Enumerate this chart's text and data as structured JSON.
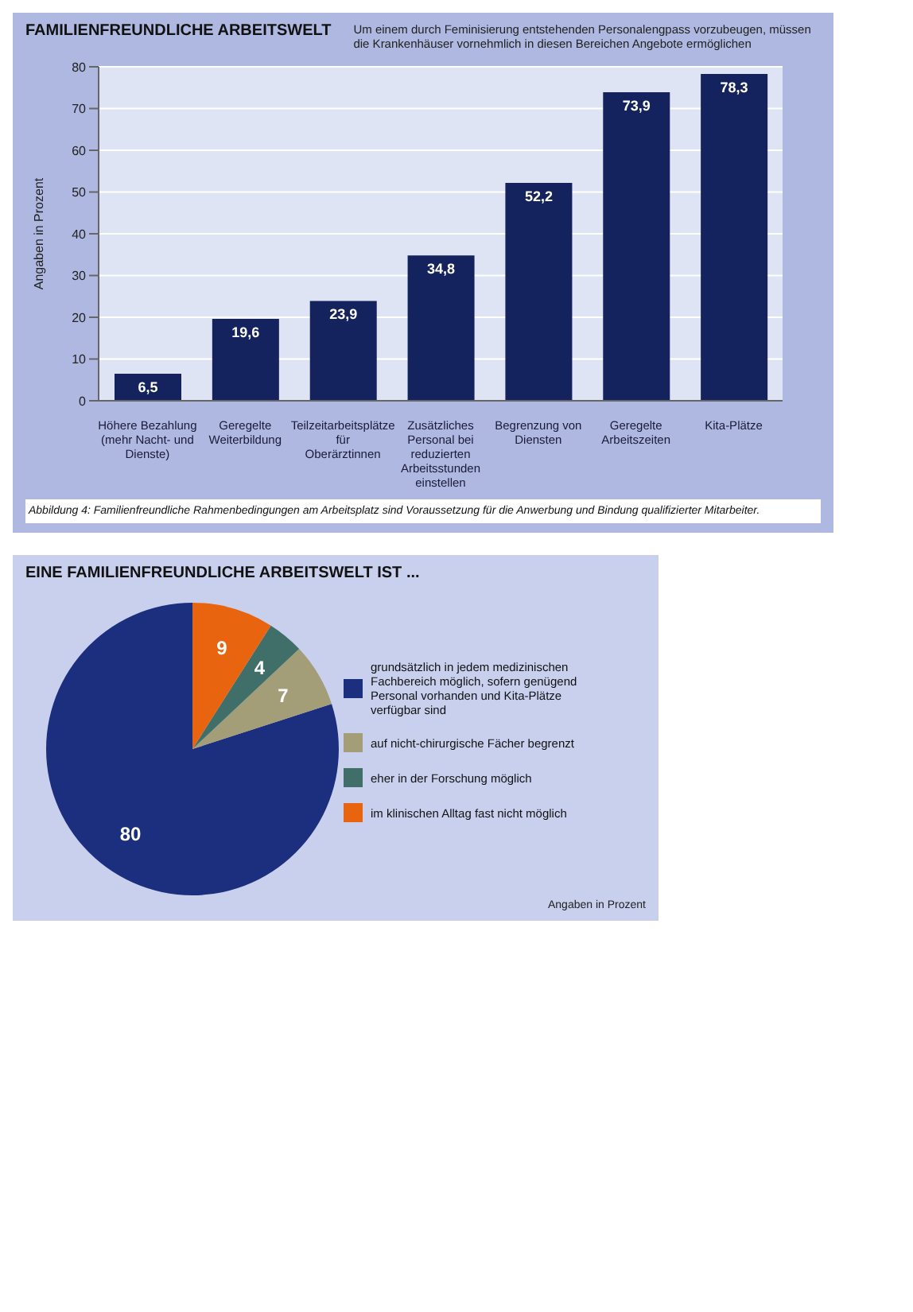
{
  "chart_data": [
    {
      "type": "bar",
      "title": "FAMILIENFREUNDLICHE ARBEITSWELT",
      "subtitle": "Um einem durch Feminisierung entstehenden Personalengpass vorzubeugen, müssen die Krankenhäuser vornehmlich in diesen Bereichen Angebote ermöglichen",
      "ylabel": "Angaben in Prozent",
      "categories": [
        "Höhere Bezahlung (mehr Nacht- und Dienste)",
        "Geregelte Weiterbildung",
        "Teilzeitarbeitsplätze für Oberärztinnen",
        "Zusätzliches Personal bei reduzierten Arbeitsstunden einstellen",
        "Begrenzung von Diensten",
        "Geregelte Arbeitszeiten",
        "Kita-Plätze"
      ],
      "values": [
        6.5,
        19.6,
        23.9,
        34.8,
        52.2,
        73.9,
        78.3
      ],
      "value_labels": [
        "6,5",
        "19,6",
        "23,9",
        "34,8",
        "52,2",
        "73,9",
        "78,3"
      ],
      "color": "#14235e",
      "ylim": [
        0,
        80
      ],
      "yticks": [
        0,
        10,
        20,
        30,
        40,
        50,
        60,
        70,
        80
      ],
      "grid": "y",
      "annotations": [
        "Abbildung 4: Familienfreundliche Rahmenbedingungen am Arbeitsplatz sind Voraussetzung für die Anwerbung und Bindung qualifizierter Mitarbeiter."
      ]
    },
    {
      "type": "pie",
      "title": "EINE FAMILIENFREUNDLICHE ARBEITSWELT IST ...",
      "categories": [
        "grundsätzlich in jedem medizinischen Fachbereich möglich, sofern genügend Personal vorhanden und Kita-Plätze verfügbar sind",
        "auf nicht-chirurgische Fächer begrenzt",
        "eher in der Forschung möglich",
        "im klinischen Alltag fast nicht möglich"
      ],
      "values": [
        80,
        7,
        4,
        9
      ],
      "colors": [
        "#1b2f7e",
        "#a39d78",
        "#3f6f68",
        "#e8640f"
      ],
      "data_labels": true,
      "legend": "right",
      "annotations": [
        "Angaben in Prozent"
      ]
    }
  ]
}
